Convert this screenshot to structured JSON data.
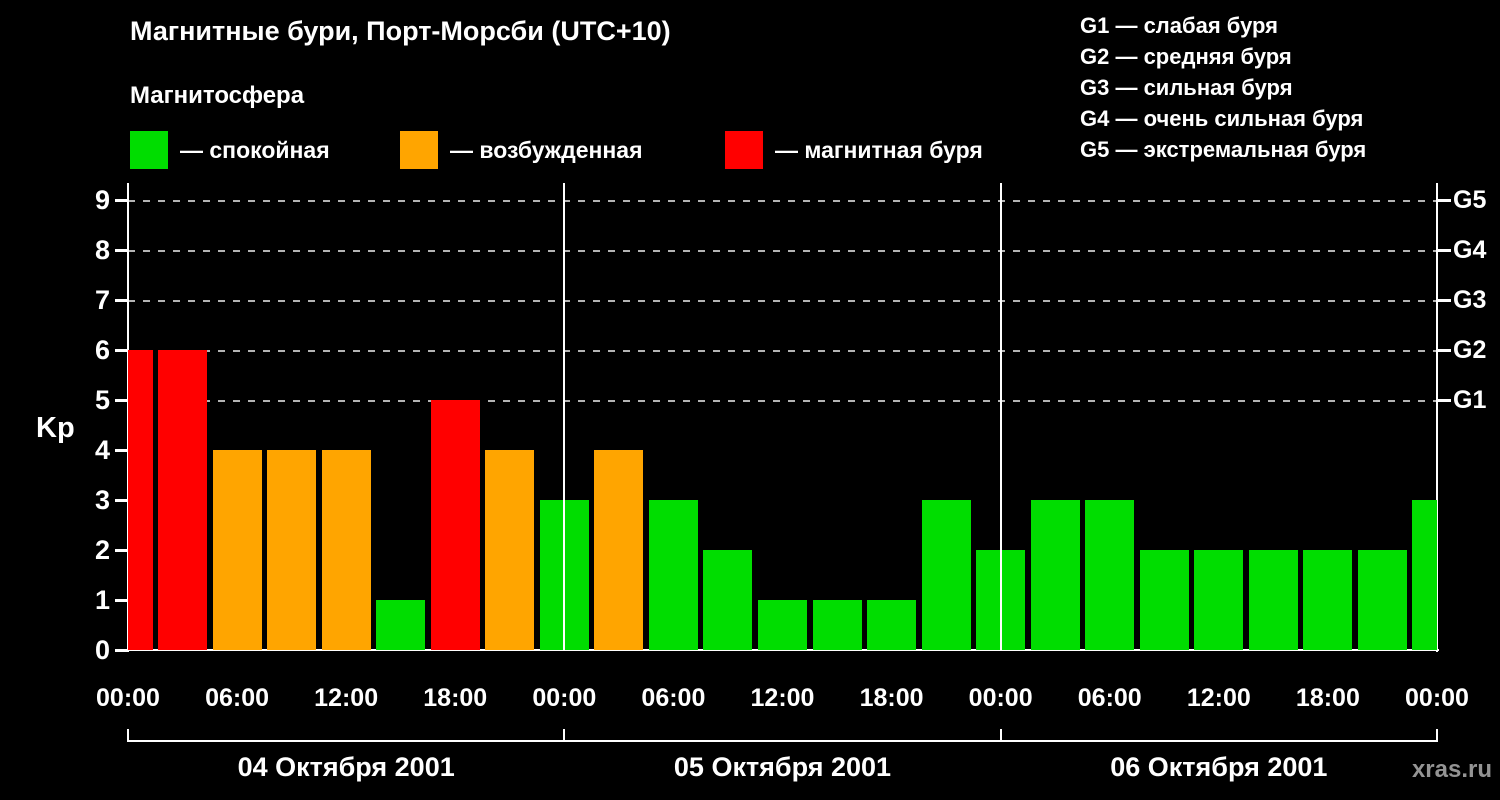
{
  "page": {
    "watermark": "xras.ru",
    "background": "#000000",
    "text_color": "#ffffff"
  },
  "header": {
    "title": "Магнитные бури, Порт-Морсби (UTC+10)",
    "subtitle": "Магнитосфера"
  },
  "legend": {
    "items": [
      {
        "status": "quiet",
        "color": "#00dd00",
        "label": "— спокойная"
      },
      {
        "status": "excited",
        "color": "#ffa500",
        "label": "— возбужденная"
      },
      {
        "status": "storm",
        "color": "#ff0000",
        "label": "— магнитная буря"
      }
    ]
  },
  "storm_scale": {
    "items": [
      "G1 — слабая буря",
      "G2 — средняя буря",
      "G3 — сильная буря",
      "G4 — очень сильная буря",
      "G5 — экстремальная буря"
    ]
  },
  "chart_data": {
    "type": "bar",
    "title": "Магнитные бури, Порт-Морсби (UTC+10)",
    "ylabel": "Kp",
    "ylim": [
      0,
      9.34
    ],
    "y_ticks": [
      0,
      1,
      2,
      3,
      4,
      5,
      6,
      7,
      8,
      9
    ],
    "gridline_levels": [
      5,
      6,
      7,
      8,
      9
    ],
    "grid": "dashed-horizontal",
    "right_axis": [
      {
        "label": "G1",
        "kp": 5
      },
      {
        "label": "G2",
        "kp": 6
      },
      {
        "label": "G3",
        "kp": 7
      },
      {
        "label": "G4",
        "kp": 8
      },
      {
        "label": "G5",
        "kp": 9
      }
    ],
    "x_hours_span": 72,
    "bar_interval_hours": 3,
    "status_colors": {
      "quiet": "#00dd00",
      "excited": "#ffa500",
      "storm": "#ff0000"
    },
    "bars": [
      {
        "hour": 0,
        "value": 6,
        "status": "storm"
      },
      {
        "hour": 3,
        "value": 6,
        "status": "storm"
      },
      {
        "hour": 6,
        "value": 4,
        "status": "excited"
      },
      {
        "hour": 9,
        "value": 4,
        "status": "excited"
      },
      {
        "hour": 12,
        "value": 4,
        "status": "excited"
      },
      {
        "hour": 15,
        "value": 1,
        "status": "quiet"
      },
      {
        "hour": 18,
        "value": 5,
        "status": "storm"
      },
      {
        "hour": 21,
        "value": 4,
        "status": "excited"
      },
      {
        "hour": 24,
        "value": 3,
        "status": "quiet"
      },
      {
        "hour": 27,
        "value": 4,
        "status": "excited"
      },
      {
        "hour": 30,
        "value": 3,
        "status": "quiet"
      },
      {
        "hour": 33,
        "value": 2,
        "status": "quiet"
      },
      {
        "hour": 36,
        "value": 1,
        "status": "quiet"
      },
      {
        "hour": 39,
        "value": 1,
        "status": "quiet"
      },
      {
        "hour": 42,
        "value": 1,
        "status": "quiet"
      },
      {
        "hour": 45,
        "value": 3,
        "status": "quiet"
      },
      {
        "hour": 48,
        "value": 2,
        "status": "quiet"
      },
      {
        "hour": 51,
        "value": 3,
        "status": "quiet"
      },
      {
        "hour": 54,
        "value": 3,
        "status": "quiet"
      },
      {
        "hour": 57,
        "value": 2,
        "status": "quiet"
      },
      {
        "hour": 60,
        "value": 2,
        "status": "quiet"
      },
      {
        "hour": 63,
        "value": 2,
        "status": "quiet"
      },
      {
        "hour": 66,
        "value": 2,
        "status": "quiet"
      },
      {
        "hour": 69,
        "value": 2,
        "status": "quiet"
      },
      {
        "hour": 72,
        "value": 3,
        "status": "quiet"
      }
    ],
    "x_ticks": [
      {
        "hour": 0,
        "label": "00:00"
      },
      {
        "hour": 6,
        "label": "06:00"
      },
      {
        "hour": 12,
        "label": "12:00"
      },
      {
        "hour": 18,
        "label": "18:00"
      },
      {
        "hour": 24,
        "label": "00:00"
      },
      {
        "hour": 30,
        "label": "06:00"
      },
      {
        "hour": 36,
        "label": "12:00"
      },
      {
        "hour": 42,
        "label": "18:00"
      },
      {
        "hour": 48,
        "label": "00:00"
      },
      {
        "hour": 54,
        "label": "06:00"
      },
      {
        "hour": 60,
        "label": "12:00"
      },
      {
        "hour": 66,
        "label": "18:00"
      },
      {
        "hour": 72,
        "label": "00:00"
      }
    ],
    "day_boundary_hours": [
      24,
      48
    ],
    "day_labels": [
      {
        "label": "04 Октября 2001",
        "start_hour": 0,
        "end_hour": 24
      },
      {
        "label": "05 Октября 2001",
        "start_hour": 24,
        "end_hour": 48
      },
      {
        "label": "06 Октября 2001",
        "start_hour": 48,
        "end_hour": 72
      }
    ]
  }
}
